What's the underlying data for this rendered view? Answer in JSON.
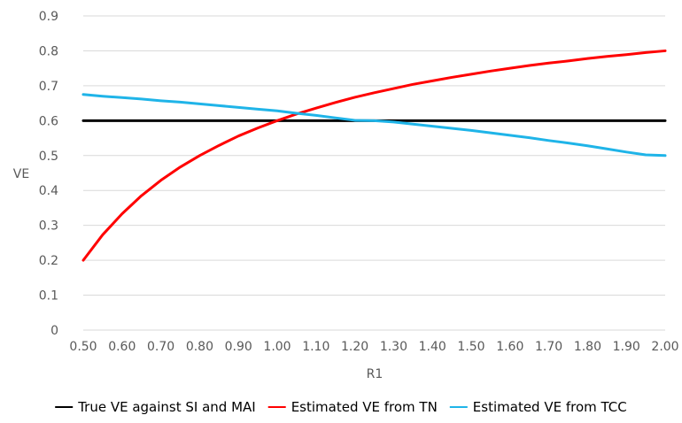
{
  "chart_data": {
    "type": "line",
    "title": "",
    "xlabel": "R1",
    "ylabel": "VE",
    "ylim": [
      0,
      0.9
    ],
    "xlim": [
      0.5,
      2.0
    ],
    "grid": true,
    "legend_position": "bottom",
    "x_tick_labels": [
      "0.50",
      "0.60",
      "0.70",
      "0.80",
      "0.90",
      "1.00",
      "1.10",
      "1.20",
      "1.30",
      "1.40",
      "1.50",
      "1.60",
      "1.70",
      "1.80",
      "1.90",
      "2.00"
    ],
    "y_tick_labels": [
      "0",
      "0.1",
      "0.2",
      "0.3",
      "0.4",
      "0.5",
      "0.6",
      "0.7",
      "0.8",
      "0.9"
    ],
    "x": [
      0.5,
      0.55,
      0.6,
      0.65,
      0.7,
      0.75,
      0.8,
      0.85,
      0.9,
      0.95,
      1.0,
      1.05,
      1.1,
      1.15,
      1.2,
      1.25,
      1.3,
      1.35,
      1.4,
      1.45,
      1.5,
      1.55,
      1.6,
      1.65,
      1.7,
      1.75,
      1.8,
      1.85,
      1.9,
      1.95,
      2.0
    ],
    "series": [
      {
        "name": "True VE against SI and MAI",
        "color": "#000000",
        "values": [
          0.6,
          0.6,
          0.6,
          0.6,
          0.6,
          0.6,
          0.6,
          0.6,
          0.6,
          0.6,
          0.6,
          0.6,
          0.6,
          0.6,
          0.6,
          0.6,
          0.6,
          0.6,
          0.6,
          0.6,
          0.6,
          0.6,
          0.6,
          0.6,
          0.6,
          0.6,
          0.6,
          0.6,
          0.6,
          0.6,
          0.6
        ]
      },
      {
        "name": "Estimated VE from TN",
        "color": "#ff0000",
        "values": [
          0.2,
          0.273,
          0.333,
          0.385,
          0.429,
          0.467,
          0.5,
          0.529,
          0.556,
          0.579,
          0.6,
          0.619,
          0.636,
          0.652,
          0.667,
          0.68,
          0.692,
          0.704,
          0.714,
          0.724,
          0.733,
          0.742,
          0.75,
          0.758,
          0.765,
          0.771,
          0.778,
          0.784,
          0.789,
          0.795,
          0.8
        ]
      },
      {
        "name": "Estimated VE from TCC",
        "color": "#1fb4e8",
        "values": [
          0.675,
          0.67,
          0.666,
          0.662,
          0.657,
          0.653,
          0.648,
          0.643,
          0.638,
          0.633,
          0.628,
          0.621,
          0.615,
          0.608,
          0.601,
          0.6,
          0.596,
          0.59,
          0.584,
          0.578,
          0.572,
          0.565,
          0.558,
          0.551,
          0.543,
          0.536,
          0.528,
          0.519,
          0.51,
          0.502,
          0.5
        ]
      }
    ]
  }
}
